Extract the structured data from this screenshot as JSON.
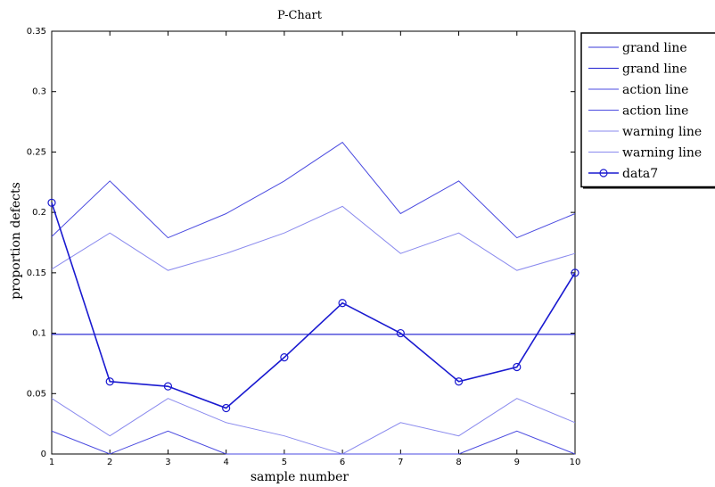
{
  "chart_data": {
    "type": "line",
    "title": "P-Chart",
    "xlabel": "sample number",
    "ylabel": "proportion defects",
    "xlim": [
      1,
      10
    ],
    "ylim": [
      0,
      0.35
    ],
    "x": [
      1,
      2,
      3,
      4,
      5,
      6,
      7,
      8,
      9,
      10
    ],
    "x_ticks": [
      "1",
      "2",
      "3",
      "4",
      "5",
      "6",
      "7",
      "8",
      "9",
      "10"
    ],
    "y_ticks": [
      0,
      0.05,
      0.1,
      0.15,
      0.2,
      0.25,
      0.3,
      0.35
    ],
    "y_tick_labels": [
      "0",
      "0.05",
      "0.1",
      "0.15",
      "0.2",
      "0.25",
      "0.3",
      "0.35"
    ],
    "grid": false,
    "legend_position": "outside top-right",
    "series": [
      {
        "name": "grand line",
        "color": "#3a3ad8",
        "marker": "none",
        "values": [
          0.099,
          0.099,
          0.099,
          0.099,
          0.099,
          0.099,
          0.099,
          0.099,
          0.099,
          0.099
        ]
      },
      {
        "name": "grand line",
        "color": "#1f1fd0",
        "marker": "none",
        "values": [
          0.099,
          0.099,
          0.099,
          0.099,
          0.099,
          0.099,
          0.099,
          0.099,
          0.099,
          0.099
        ]
      },
      {
        "name": "action line",
        "color": "#4b4be0",
        "marker": "none",
        "values": [
          0.18,
          0.226,
          0.179,
          0.199,
          0.226,
          0.258,
          0.199,
          0.226,
          0.179,
          0.199
        ]
      },
      {
        "name": "action line",
        "color": "#4b4be0",
        "marker": "none",
        "values": [
          0.019,
          0.0,
          0.019,
          0.0,
          0.0,
          0.0,
          0.0,
          0.0,
          0.019,
          0.0
        ]
      },
      {
        "name": "warning line",
        "color": "#8a8aee",
        "marker": "none",
        "values": [
          0.153,
          0.183,
          0.152,
          0.166,
          0.183,
          0.205,
          0.166,
          0.183,
          0.152,
          0.166
        ]
      },
      {
        "name": "warning line",
        "color": "#8a8aee",
        "marker": "none",
        "values": [
          0.046,
          0.015,
          0.046,
          0.026,
          0.015,
          0.0,
          0.026,
          0.015,
          0.046,
          0.026
        ]
      },
      {
        "name": "data7",
        "color": "#1a1ad0",
        "marker": "circle",
        "values": [
          0.208,
          0.06,
          0.056,
          0.038,
          0.08,
          0.125,
          0.1,
          0.06,
          0.072,
          0.15
        ]
      }
    ]
  }
}
